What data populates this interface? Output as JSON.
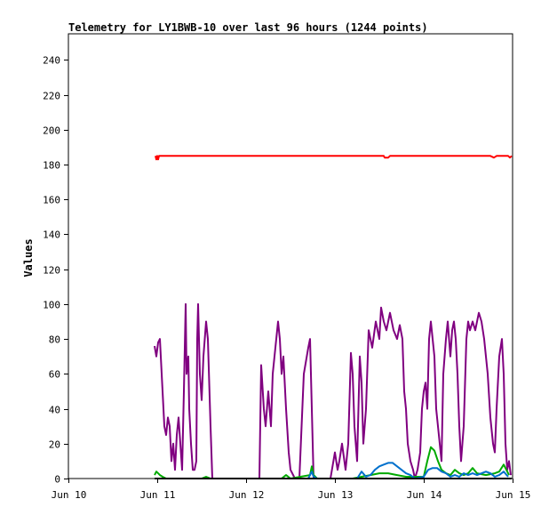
{
  "chart_data": {
    "type": "line",
    "title": "Telemetry for LY1BWB-10 over last 96 hours (1244 points)",
    "xlabel": "",
    "ylabel": "Values",
    "xlim": [
      "Jun 10",
      "Jun 15"
    ],
    "ylim": [
      0,
      255
    ],
    "grid": false,
    "legend": "none",
    "x_ticks": [
      "Jun 10",
      "Jun 11",
      "Jun 12",
      "Jun 13",
      "Jun 14",
      "Jun 15"
    ],
    "y_ticks": [
      0,
      20,
      40,
      60,
      80,
      100,
      120,
      140,
      160,
      180,
      200,
      220,
      240
    ],
    "series": [
      {
        "color": "#ff0000",
        "points": [
          [
            0.98,
            185
          ],
          [
            0.99,
            183
          ],
          [
            1.0,
            185
          ],
          [
            1.01,
            183
          ],
          [
            1.02,
            185
          ],
          [
            2.0,
            185
          ],
          [
            3.0,
            185
          ],
          [
            3.55,
            185
          ],
          [
            3.56,
            184
          ],
          [
            3.6,
            184
          ],
          [
            3.62,
            185
          ],
          [
            4.0,
            185
          ],
          [
            4.75,
            185
          ],
          [
            4.79,
            184
          ],
          [
            4.82,
            185
          ],
          [
            4.95,
            185
          ],
          [
            4.97,
            184
          ],
          [
            4.99,
            185
          ]
        ]
      },
      {
        "color": "#800080",
        "points": [
          [
            0.97,
            76
          ],
          [
            0.99,
            70
          ],
          [
            1.01,
            78
          ],
          [
            1.03,
            80
          ],
          [
            1.05,
            60
          ],
          [
            1.07,
            40
          ],
          [
            1.08,
            30
          ],
          [
            1.1,
            25
          ],
          [
            1.12,
            35
          ],
          [
            1.14,
            30
          ],
          [
            1.16,
            10
          ],
          [
            1.18,
            20
          ],
          [
            1.2,
            5
          ],
          [
            1.22,
            25
          ],
          [
            1.24,
            35
          ],
          [
            1.26,
            20
          ],
          [
            1.28,
            5
          ],
          [
            1.3,
            50
          ],
          [
            1.32,
            100
          ],
          [
            1.33,
            60
          ],
          [
            1.35,
            70
          ],
          [
            1.36,
            40
          ],
          [
            1.38,
            20
          ],
          [
            1.4,
            5
          ],
          [
            1.42,
            5
          ],
          [
            1.44,
            10
          ],
          [
            1.45,
            80
          ],
          [
            1.46,
            100
          ],
          [
            1.48,
            60
          ],
          [
            1.5,
            45
          ],
          [
            1.52,
            70
          ],
          [
            1.55,
            90
          ],
          [
            1.57,
            80
          ],
          [
            1.6,
            30
          ],
          [
            1.62,
            0
          ],
          [
            1.9,
            0
          ],
          [
            1.95,
            0
          ],
          [
            2.0,
            0
          ],
          [
            2.1,
            0
          ],
          [
            2.15,
            0
          ],
          [
            2.17,
            65
          ],
          [
            2.2,
            40
          ],
          [
            2.22,
            30
          ],
          [
            2.25,
            50
          ],
          [
            2.28,
            30
          ],
          [
            2.3,
            60
          ],
          [
            2.32,
            70
          ],
          [
            2.36,
            90
          ],
          [
            2.38,
            80
          ],
          [
            2.4,
            60
          ],
          [
            2.42,
            70
          ],
          [
            2.45,
            40
          ],
          [
            2.48,
            15
          ],
          [
            2.5,
            5
          ],
          [
            2.55,
            0
          ],
          [
            2.6,
            0
          ],
          [
            2.65,
            60
          ],
          [
            2.7,
            75
          ],
          [
            2.72,
            80
          ],
          [
            2.74,
            40
          ],
          [
            2.76,
            0
          ],
          [
            2.85,
            0
          ],
          [
            2.95,
            0
          ],
          [
            3.0,
            15
          ],
          [
            3.03,
            5
          ],
          [
            3.05,
            10
          ],
          [
            3.08,
            20
          ],
          [
            3.12,
            5
          ],
          [
            3.15,
            20
          ],
          [
            3.18,
            72
          ],
          [
            3.2,
            60
          ],
          [
            3.22,
            30
          ],
          [
            3.25,
            10
          ],
          [
            3.28,
            70
          ],
          [
            3.3,
            55
          ],
          [
            3.32,
            20
          ],
          [
            3.35,
            40
          ],
          [
            3.38,
            85
          ],
          [
            3.42,
            75
          ],
          [
            3.46,
            90
          ],
          [
            3.5,
            80
          ],
          [
            3.52,
            98
          ],
          [
            3.55,
            90
          ],
          [
            3.58,
            85
          ],
          [
            3.62,
            95
          ],
          [
            3.66,
            85
          ],
          [
            3.7,
            80
          ],
          [
            3.73,
            88
          ],
          [
            3.76,
            80
          ],
          [
            3.78,
            50
          ],
          [
            3.8,
            40
          ],
          [
            3.82,
            20
          ],
          [
            3.85,
            10
          ],
          [
            3.88,
            5
          ],
          [
            3.9,
            0
          ],
          [
            3.93,
            5
          ],
          [
            3.96,
            15
          ],
          [
            3.98,
            40
          ],
          [
            4.0,
            50
          ],
          [
            4.02,
            55
          ],
          [
            4.04,
            40
          ],
          [
            4.06,
            80
          ],
          [
            4.08,
            90
          ],
          [
            4.1,
            80
          ],
          [
            4.12,
            70
          ],
          [
            4.14,
            40
          ],
          [
            4.16,
            30
          ],
          [
            4.18,
            20
          ],
          [
            4.2,
            10
          ],
          [
            4.22,
            60
          ],
          [
            4.25,
            80
          ],
          [
            4.27,
            90
          ],
          [
            4.3,
            70
          ],
          [
            4.32,
            85
          ],
          [
            4.34,
            90
          ],
          [
            4.36,
            80
          ],
          [
            4.38,
            60
          ],
          [
            4.4,
            30
          ],
          [
            4.42,
            10
          ],
          [
            4.45,
            30
          ],
          [
            4.48,
            80
          ],
          [
            4.5,
            90
          ],
          [
            4.52,
            85
          ],
          [
            4.55,
            90
          ],
          [
            4.58,
            85
          ],
          [
            4.62,
            95
          ],
          [
            4.65,
            90
          ],
          [
            4.68,
            80
          ],
          [
            4.72,
            60
          ],
          [
            4.75,
            35
          ],
          [
            4.78,
            20
          ],
          [
            4.8,
            15
          ],
          [
            4.82,
            40
          ],
          [
            4.85,
            70
          ],
          [
            4.88,
            80
          ],
          [
            4.9,
            60
          ],
          [
            4.92,
            20
          ],
          [
            4.94,
            5
          ],
          [
            4.96,
            10
          ],
          [
            4.98,
            2
          ]
        ]
      },
      {
        "color": "#00aa00",
        "points": [
          [
            0.97,
            2
          ],
          [
            0.99,
            4
          ],
          [
            1.01,
            3
          ],
          [
            1.03,
            2
          ],
          [
            1.06,
            1
          ],
          [
            1.1,
            0
          ],
          [
            1.5,
            0
          ],
          [
            1.55,
            1
          ],
          [
            1.6,
            0
          ],
          [
            2.4,
            0
          ],
          [
            2.45,
            2
          ],
          [
            2.5,
            0
          ],
          [
            2.72,
            2
          ],
          [
            2.74,
            7
          ],
          [
            2.76,
            2
          ],
          [
            2.8,
            0
          ],
          [
            3.2,
            0
          ],
          [
            3.3,
            1
          ],
          [
            3.4,
            2
          ],
          [
            3.5,
            3
          ],
          [
            3.6,
            3
          ],
          [
            3.7,
            2
          ],
          [
            3.8,
            1
          ],
          [
            4.0,
            1
          ],
          [
            4.04,
            10
          ],
          [
            4.08,
            18
          ],
          [
            4.12,
            16
          ],
          [
            4.16,
            10
          ],
          [
            4.2,
            5
          ],
          [
            4.25,
            3
          ],
          [
            4.3,
            2
          ],
          [
            4.35,
            5
          ],
          [
            4.4,
            3
          ],
          [
            4.45,
            2
          ],
          [
            4.5,
            3
          ],
          [
            4.55,
            6
          ],
          [
            4.6,
            3
          ],
          [
            4.7,
            2
          ],
          [
            4.8,
            3
          ],
          [
            4.85,
            4
          ],
          [
            4.9,
            8
          ],
          [
            4.93,
            5
          ],
          [
            4.96,
            2
          ]
        ]
      },
      {
        "color": "#0070cc",
        "points": [
          [
            0.97,
            0
          ],
          [
            2.7,
            0
          ],
          [
            2.72,
            2
          ],
          [
            2.74,
            4
          ],
          [
            2.76,
            1
          ],
          [
            2.8,
            0
          ],
          [
            3.2,
            0
          ],
          [
            3.25,
            0
          ],
          [
            3.3,
            4
          ],
          [
            3.35,
            1
          ],
          [
            3.4,
            2
          ],
          [
            3.45,
            5
          ],
          [
            3.5,
            7
          ],
          [
            3.55,
            8
          ],
          [
            3.6,
            9
          ],
          [
            3.65,
            9
          ],
          [
            3.7,
            7
          ],
          [
            3.75,
            5
          ],
          [
            3.8,
            3
          ],
          [
            3.85,
            2
          ],
          [
            3.9,
            0
          ],
          [
            4.0,
            1
          ],
          [
            4.05,
            5
          ],
          [
            4.1,
            6
          ],
          [
            4.15,
            6
          ],
          [
            4.2,
            4
          ],
          [
            4.25,
            3
          ],
          [
            4.3,
            1
          ],
          [
            4.35,
            2
          ],
          [
            4.4,
            1
          ],
          [
            4.45,
            3
          ],
          [
            4.5,
            2
          ],
          [
            4.55,
            3
          ],
          [
            4.6,
            2
          ],
          [
            4.7,
            4
          ],
          [
            4.75,
            3
          ],
          [
            4.8,
            1
          ],
          [
            4.85,
            2
          ],
          [
            4.9,
            4
          ],
          [
            4.95,
            1
          ]
        ]
      },
      {
        "color": "#000000",
        "points": [
          [
            0.97,
            0
          ],
          [
            4.99,
            0
          ]
        ]
      }
    ]
  }
}
